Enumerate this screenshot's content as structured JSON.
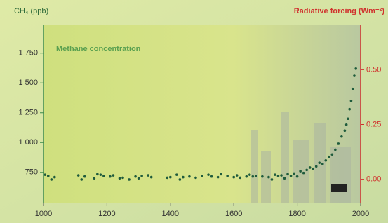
{
  "chart_data": {
    "type": "scatter",
    "title": "Methane concentration",
    "y_label": "CH₄ (ppb)",
    "y2_label": "Radiative forcing (Wm⁻²)",
    "x": [
      1005,
      1015,
      1025,
      1035,
      1110,
      1120,
      1130,
      1160,
      1170,
      1180,
      1190,
      1210,
      1220,
      1240,
      1250,
      1270,
      1290,
      1300,
      1310,
      1330,
      1340,
      1390,
      1400,
      1420,
      1430,
      1440,
      1460,
      1480,
      1500,
      1520,
      1530,
      1550,
      1560,
      1580,
      1600,
      1610,
      1620,
      1640,
      1650,
      1660,
      1670,
      1690,
      1710,
      1720,
      1730,
      1740,
      1750,
      1760,
      1770,
      1780,
      1790,
      1800,
      1810,
      1820,
      1830,
      1840,
      1850,
      1860,
      1870,
      1880,
      1890,
      1900,
      1910,
      1920,
      1930,
      1940,
      1950,
      1955,
      1960,
      1965,
      1970,
      1975,
      1980,
      1985
    ],
    "values": [
      730,
      720,
      690,
      710,
      725,
      690,
      715,
      700,
      735,
      730,
      720,
      715,
      725,
      700,
      705,
      690,
      715,
      700,
      720,
      725,
      710,
      705,
      710,
      730,
      690,
      710,
      715,
      705,
      720,
      730,
      715,
      710,
      735,
      720,
      710,
      725,
      705,
      715,
      730,
      715,
      720,
      715,
      710,
      690,
      730,
      720,
      725,
      700,
      735,
      720,
      740,
      715,
      760,
      745,
      770,
      790,
      780,
      800,
      830,
      820,
      850,
      880,
      900,
      940,
      990,
      1050,
      1100,
      1150,
      1200,
      1280,
      1350,
      1450,
      1560,
      1620
    ],
    "color": "#1f5b3c",
    "xlim": [
      1000,
      2000
    ],
    "xticks": [
      1000,
      1200,
      1400,
      1600,
      1800,
      2000
    ],
    "ylim": [
      490,
      1960
    ],
    "yticks": [
      750,
      {
        "value": 1000,
        "label": "1 000"
      },
      {
        "value": 1250,
        "label": "1 250"
      },
      {
        "value": 1500,
        "label": "1 500"
      },
      {
        "value": 1750,
        "label": "1 750"
      }
    ],
    "y2lim": [
      -0.11,
      0.69
    ],
    "y2ticks": [
      {
        "value": 0,
        "label": "0.00"
      },
      {
        "value": 0.25,
        "label": "0.25"
      },
      {
        "value": 0.5,
        "label": "0.50"
      }
    ]
  }
}
